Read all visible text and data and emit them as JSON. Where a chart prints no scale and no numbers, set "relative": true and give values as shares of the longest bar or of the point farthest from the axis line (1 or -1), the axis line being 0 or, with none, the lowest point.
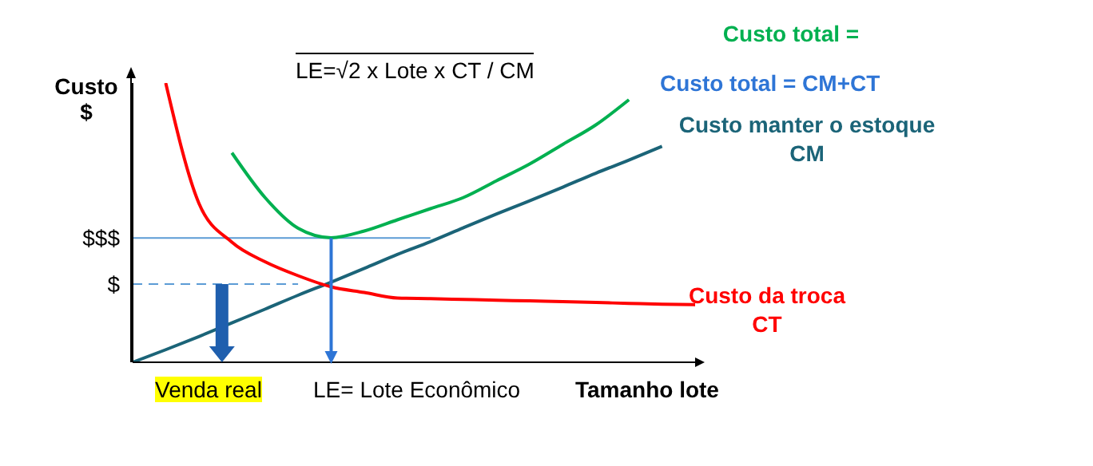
{
  "chart_data": {
    "type": "line",
    "relative": true,
    "xlabel": "Tamanho lote",
    "ylabel": "Custo $",
    "marker": "none",
    "line_style": "solid",
    "categories": [
      null,
      null,
      null,
      null,
      null,
      null,
      null,
      null,
      null,
      null,
      null,
      null,
      null,
      null,
      null,
      null,
      null,
      null
    ],
    "series": [
      {
        "name": "Custo total =",
        "color": "#00b050",
        "values": [
          null,
          null,
          null,
          0.75,
          0.59,
          0.48,
          0.446,
          0.47,
          0.51,
          0.55,
          0.59,
          0.65,
          0.71,
          0.78,
          0.85,
          0.94,
          null,
          null
        ]
      },
      {
        "name": "Custo manter o estoque CM",
        "color": "#1b6478",
        "values": [
          0,
          0.045,
          0.092,
          0.141,
          0.19,
          0.24,
          0.287,
          0.336,
          0.386,
          0.432,
          0.482,
          0.531,
          0.578,
          0.627,
          0.677,
          0.724,
          0.773,
          null
        ]
      },
      {
        "name": "Custo da troca CT",
        "color": "#ff0000",
        "values": [
          null,
          1,
          0.57,
          0.43,
          0.36,
          0.31,
          0.27,
          0.25,
          0.23,
          0.228,
          0.225,
          0.222,
          0.22,
          0.217,
          0.214,
          0.211,
          0.208,
          0.206
        ]
      }
    ],
    "ref_lines": [
      {
        "axis": "y",
        "value": 0.445,
        "label": "$$$",
        "color": "#5b9bd5",
        "line_style": "solid"
      },
      {
        "axis": "y",
        "value": 0.28,
        "label": "$",
        "color": "#5b9bd5",
        "line_style": "dashed"
      }
    ],
    "annotations": [
      "LE=√2 x Lote x CT / CM",
      "Custo total = CM+CT",
      "Venda real",
      "LE= Lote Econômico"
    ]
  }
}
